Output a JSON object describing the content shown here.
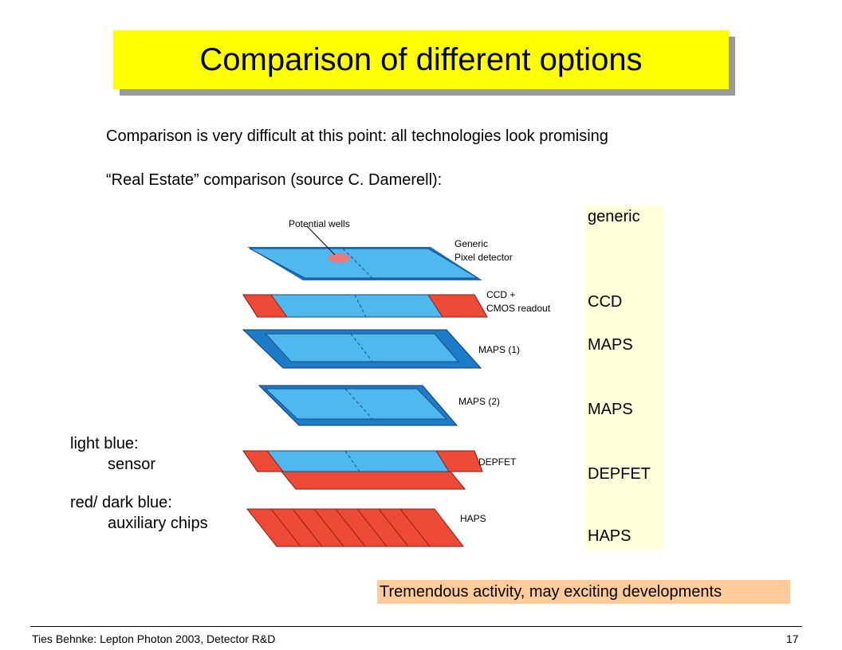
{
  "title": "Comparison of different options",
  "intro": "Comparison is very difficult at this point: all technologies look promising",
  "subtitle": "“Real Estate” comparison (source C. Damerell):",
  "legend_labels": {
    "light_blue": "light blue:",
    "light_blue_desc": "sensor",
    "red_dark_blue": "red/ dark blue:",
    "red_dark_blue_desc": "auxiliary chips"
  },
  "column_labels": [
    "generic",
    "CCD",
    "MAPS",
    "MAPS",
    "DEPFET",
    "HAPS"
  ],
  "diagram": {
    "potential_wells": "Potential wells",
    "generic": [
      "Generic",
      "Pixel detector"
    ],
    "ccd": [
      "CCD +",
      "CMOS readout"
    ],
    "maps1": "MAPS (1)",
    "maps2": "MAPS (2)",
    "depfet": "DEPFET",
    "haps": "HAPS"
  },
  "conclusion": "Tremendous activity, may exciting developments",
  "footer": {
    "left": "Ties Behnke: Lepton Photon 2003, Detector R&D",
    "page": "17"
  },
  "colors": {
    "title_bg": "#ffff00",
    "legend_bg": "#ffffd9",
    "highlight_bg": "#ffcc99",
    "sensor": "#4fb8ee",
    "sensor_dark": "#1d7cc7",
    "chip_red": "#ee4a38"
  }
}
